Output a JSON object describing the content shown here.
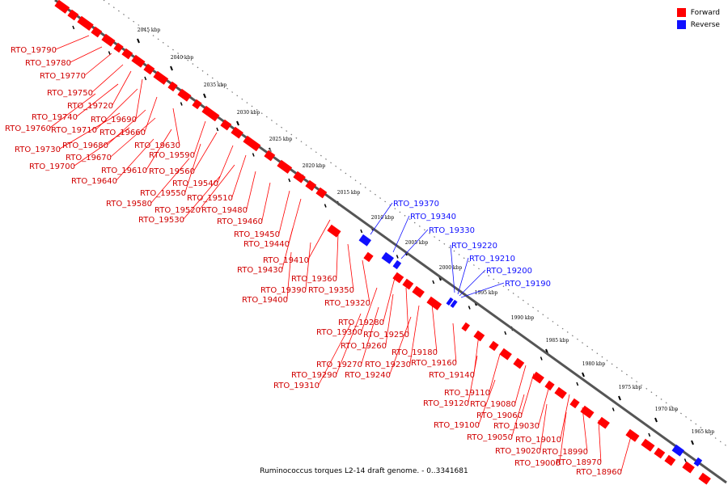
{
  "legend": {
    "forward_label": "Forward",
    "reverse_label": "Reverse",
    "forward_color": "#ff0000",
    "reverse_color": "#1010ff"
  },
  "caption": "Ruminococcus torques L2-14 draft genome. - 0..3341681",
  "scale_ticks": [
    "2045 kbp",
    "2040 kbp",
    "2035 kbp",
    "2030 kbp",
    "2025 kbp",
    "2020 kbp",
    "2015 kbp",
    "2010 kbp",
    "2005 kbp",
    "2000 kbp",
    "1995 kbp",
    "1990 kbp",
    "1985 kbp",
    "1980 kbp",
    "1975 kbp",
    "1970 kbp",
    "1965 kbp"
  ],
  "forward_labels": [
    "RTO_19790",
    "RTO_19780",
    "RTO_19770",
    "RTO_19750",
    "RTO_19720",
    "RTO_19690",
    "RTO_19740",
    "RTO_19710",
    "RTO_19760",
    "RTO_19660",
    "RTO_19630",
    "RTO_19680",
    "RTO_19730",
    "RTO_19670",
    "RTO_19590",
    "RTO_19700",
    "RTO_19610",
    "RTO_19560",
    "RTO_19640",
    "RTO_19540",
    "RTO_19550",
    "RTO_19510",
    "RTO_19580",
    "RTO_19520",
    "RTO_19480",
    "RTO_19530",
    "RTO_19460",
    "RTO_19450",
    "RTO_19440",
    "RTO_19410",
    "RTO_19430",
    "RTO_19360",
    "RTO_19390",
    "RTO_19350",
    "RTO_19400",
    "RTO_19320",
    "RTO_19280",
    "RTO_19300",
    "RTO_19250",
    "RTO_19260",
    "RTO_19180",
    "RTO_19270",
    "RTO_19230",
    "RTO_19160",
    "RTO_19290",
    "RTO_19240",
    "RTO_19140",
    "RTO_19310",
    "RTO_19110",
    "RTO_19120",
    "RTO_19080",
    "RTO_19060",
    "RTO_19100",
    "RTO_19030",
    "RTO_19050",
    "RTO_19010",
    "RTO_19020",
    "RTO_18990",
    "RTO_19000",
    "RTO_18970",
    "RTO_18960"
  ],
  "reverse_labels": [
    "RTO_19370",
    "RTO_19340",
    "RTO_19330",
    "RTO_19220",
    "RTO_19210",
    "RTO_19200",
    "RTO_19190"
  ]
}
